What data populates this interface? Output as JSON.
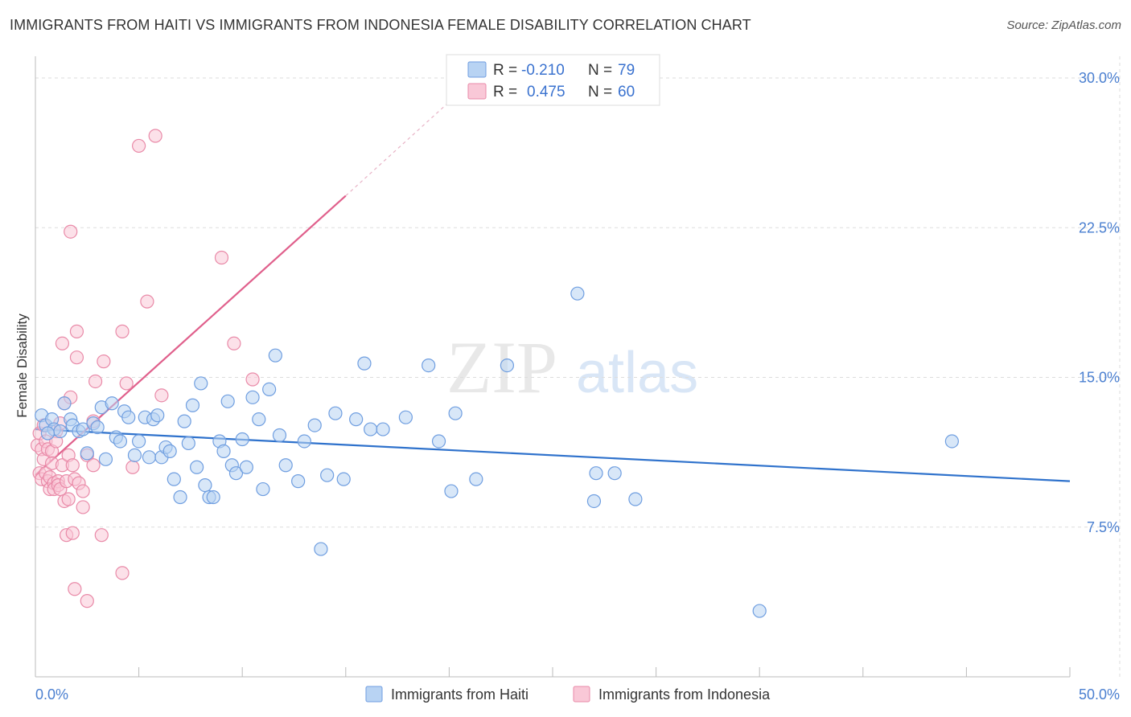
{
  "header": {
    "title": "IMMIGRANTS FROM HAITI VS IMMIGRANTS FROM INDONESIA FEMALE DISABILITY CORRELATION CHART",
    "source": "Source: ZipAtlas.com"
  },
  "watermark": {
    "zip": "ZIP",
    "atlas": "atlas"
  },
  "colors": {
    "haiti_fill": "#b8d3f3",
    "haiti_stroke": "#6f9ee0",
    "haiti_line": "#2f72cc",
    "indo_fill": "#f9c8d7",
    "indo_stroke": "#e98aa8",
    "indo_line": "#e0608c",
    "axis_text": "#4a7fd0",
    "grid": "#dddddd"
  },
  "chart_data": {
    "type": "scatter",
    "title": "IMMIGRANTS FROM HAITI VS IMMIGRANTS FROM INDONESIA FEMALE DISABILITY CORRELATION CHART",
    "ylabel": "Female Disability",
    "xlabel": "",
    "xlim": [
      0,
      50
    ],
    "ylim": [
      0,
      31.5
    ],
    "y_ticks": [
      7.5,
      15.0,
      22.5,
      30.0
    ],
    "y_tick_labels": [
      "7.5%",
      "15.0%",
      "22.5%",
      "30.0%"
    ],
    "x_tick_labels": {
      "min": "0.0%",
      "max": "50.0%"
    },
    "grid": true,
    "legend": {
      "items": [
        {
          "r_label": "R =",
          "r_value": "-0.210",
          "n_label": "N =",
          "n_value": "79"
        },
        {
          "r_label": "R =",
          "r_value": "0.475",
          "n_label": "N =",
          "n_value": "60"
        }
      ]
    },
    "series": [
      {
        "name": "Immigrants from Haiti",
        "r": -0.21,
        "n": 79,
        "trend": {
          "x": [
            0,
            50
          ],
          "y": [
            12.4,
            9.8
          ]
        },
        "points": [
          [
            0.3,
            13.1
          ],
          [
            0.5,
            12.6
          ],
          [
            0.8,
            12.9
          ],
          [
            0.9,
            12.4
          ],
          [
            1.2,
            12.3
          ],
          [
            1.4,
            13.7
          ],
          [
            1.7,
            12.9
          ],
          [
            1.8,
            12.6
          ],
          [
            2.1,
            12.3
          ],
          [
            2.3,
            12.4
          ],
          [
            2.5,
            11.2
          ],
          [
            2.8,
            12.7
          ],
          [
            3.0,
            12.5
          ],
          [
            3.2,
            13.5
          ],
          [
            3.4,
            10.9
          ],
          [
            3.7,
            13.7
          ],
          [
            3.9,
            12.0
          ],
          [
            4.1,
            11.8
          ],
          [
            4.3,
            13.3
          ],
          [
            4.5,
            13.0
          ],
          [
            4.8,
            11.1
          ],
          [
            5.0,
            11.8
          ],
          [
            5.3,
            13.0
          ],
          [
            5.5,
            11.0
          ],
          [
            5.7,
            12.9
          ],
          [
            5.9,
            13.1
          ],
          [
            6.1,
            11.0
          ],
          [
            6.3,
            11.5
          ],
          [
            6.5,
            11.3
          ],
          [
            6.7,
            9.9
          ],
          [
            7.0,
            9.0
          ],
          [
            7.2,
            12.8
          ],
          [
            7.4,
            11.7
          ],
          [
            7.6,
            13.6
          ],
          [
            7.8,
            10.5
          ],
          [
            8.0,
            14.7
          ],
          [
            8.2,
            9.6
          ],
          [
            8.4,
            9.0
          ],
          [
            8.6,
            9.0
          ],
          [
            8.9,
            11.8
          ],
          [
            9.1,
            11.3
          ],
          [
            9.3,
            13.8
          ],
          [
            9.5,
            10.6
          ],
          [
            9.7,
            10.2
          ],
          [
            10.0,
            11.9
          ],
          [
            10.2,
            10.5
          ],
          [
            10.5,
            14.0
          ],
          [
            10.8,
            12.9
          ],
          [
            11.0,
            9.4
          ],
          [
            11.3,
            14.4
          ],
          [
            11.6,
            16.1
          ],
          [
            11.8,
            12.1
          ],
          [
            12.1,
            10.6
          ],
          [
            12.7,
            9.8
          ],
          [
            13.0,
            11.8
          ],
          [
            13.5,
            12.6
          ],
          [
            13.8,
            6.4
          ],
          [
            14.1,
            10.1
          ],
          [
            14.5,
            13.2
          ],
          [
            14.9,
            9.9
          ],
          [
            15.5,
            12.9
          ],
          [
            15.9,
            15.7
          ],
          [
            16.2,
            12.4
          ],
          [
            16.8,
            12.4
          ],
          [
            17.9,
            13.0
          ],
          [
            19.0,
            15.6
          ],
          [
            19.5,
            11.8
          ],
          [
            20.1,
            9.3
          ],
          [
            20.3,
            13.2
          ],
          [
            21.3,
            9.9
          ],
          [
            22.8,
            15.6
          ],
          [
            26.2,
            19.2
          ],
          [
            27.0,
            8.8
          ],
          [
            27.1,
            10.2
          ],
          [
            28.0,
            10.2
          ],
          [
            29.0,
            8.9
          ],
          [
            35.0,
            3.3
          ],
          [
            44.3,
            11.8
          ],
          [
            0.6,
            12.2
          ]
        ]
      },
      {
        "name": "Immigrants from Indonesia",
        "r": 0.475,
        "n": 60,
        "trend": {
          "x": [
            0,
            15
          ],
          "y": [
            10.1,
            24.1
          ],
          "dashed_to": {
            "x": 20,
            "y": 28.8
          }
        },
        "points": [
          [
            0.1,
            11.6
          ],
          [
            0.2,
            12.2
          ],
          [
            0.2,
            10.2
          ],
          [
            0.3,
            11.4
          ],
          [
            0.3,
            9.9
          ],
          [
            0.4,
            10.9
          ],
          [
            0.4,
            12.6
          ],
          [
            0.5,
            11.8
          ],
          [
            0.5,
            10.2
          ],
          [
            0.6,
            11.4
          ],
          [
            0.6,
            9.8
          ],
          [
            0.7,
            10.0
          ],
          [
            0.7,
            9.4
          ],
          [
            0.8,
            11.3
          ],
          [
            0.8,
            10.7
          ],
          [
            0.9,
            9.7
          ],
          [
            0.9,
            9.4
          ],
          [
            1.0,
            12.3
          ],
          [
            1.0,
            11.8
          ],
          [
            1.1,
            9.8
          ],
          [
            1.1,
            9.6
          ],
          [
            1.2,
            12.7
          ],
          [
            1.2,
            9.4
          ],
          [
            1.3,
            16.7
          ],
          [
            1.3,
            10.6
          ],
          [
            1.4,
            13.7
          ],
          [
            1.4,
            8.8
          ],
          [
            1.5,
            9.8
          ],
          [
            1.5,
            7.1
          ],
          [
            1.6,
            11.1
          ],
          [
            1.6,
            8.9
          ],
          [
            1.7,
            22.3
          ],
          [
            1.7,
            14.0
          ],
          [
            1.8,
            10.6
          ],
          [
            1.8,
            7.2
          ],
          [
            1.9,
            9.9
          ],
          [
            1.9,
            4.4
          ],
          [
            2.0,
            17.3
          ],
          [
            2.0,
            16.0
          ],
          [
            2.1,
            9.7
          ],
          [
            2.3,
            9.3
          ],
          [
            2.3,
            8.5
          ],
          [
            2.5,
            3.8
          ],
          [
            2.5,
            11.1
          ],
          [
            2.8,
            10.6
          ],
          [
            2.8,
            12.8
          ],
          [
            2.9,
            14.8
          ],
          [
            3.2,
            7.1
          ],
          [
            3.3,
            15.8
          ],
          [
            4.2,
            17.3
          ],
          [
            4.2,
            5.2
          ],
          [
            4.4,
            14.7
          ],
          [
            4.7,
            10.5
          ],
          [
            5.0,
            26.6
          ],
          [
            5.4,
            18.8
          ],
          [
            5.8,
            27.1
          ],
          [
            6.1,
            14.1
          ],
          [
            9.0,
            21.0
          ],
          [
            9.6,
            16.7
          ],
          [
            10.5,
            14.9
          ]
        ]
      }
    ]
  }
}
